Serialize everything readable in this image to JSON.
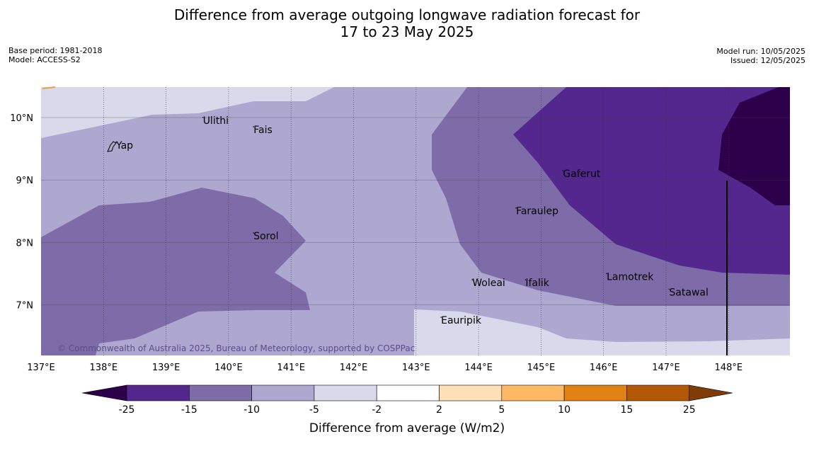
{
  "title_line1": "Difference from average outgoing longwave radiation forecast for",
  "title_line2": "17 to 23 May 2025",
  "base_period": "Base period: 1981-2018",
  "model": "Model: ACCESS-S2",
  "model_run": "Model run: 10/05/2025",
  "issued": "Issued: 12/05/2025",
  "copyright": "© Commonwealth of Australia 2025, Bureau of Meteorology, supported by COSPPac",
  "x_ticks": [
    "137°E",
    "138°E",
    "139°E",
    "140°E",
    "141°E",
    "142°E",
    "143°E",
    "144°E",
    "145°E",
    "146°E",
    "147°E",
    "148°E"
  ],
  "y_ticks": [
    "10°N",
    "9°N",
    "8°N",
    "7°N"
  ],
  "places": [
    {
      "name": "Ulithi",
      "lon": 139.59,
      "lat": 9.9
    },
    {
      "name": "Fais",
      "lon": 140.4,
      "lat": 9.75
    },
    {
      "name": "Yap",
      "lon": 138.2,
      "lat": 9.5
    },
    {
      "name": "Gaferut",
      "lon": 145.35,
      "lat": 9.05
    },
    {
      "name": "Faraulep",
      "lon": 144.6,
      "lat": 8.45
    },
    {
      "name": "Sorol",
      "lon": 140.4,
      "lat": 8.05
    },
    {
      "name": "Lamotrek",
      "lon": 146.05,
      "lat": 7.4
    },
    {
      "name": "Woleai",
      "lon": 143.9,
      "lat": 7.3
    },
    {
      "name": "Ifalik",
      "lon": 144.75,
      "lat": 7.3
    },
    {
      "name": "Satawal",
      "lon": 147.05,
      "lat": 7.15
    },
    {
      "name": "Eauripik",
      "lon": 143.4,
      "lat": 6.7
    }
  ],
  "colorbar": {
    "label": "Difference from average (W/m2)",
    "boundaries": [
      "-25",
      "-15",
      "-10",
      "-5",
      "-2",
      "2",
      "5",
      "10",
      "15",
      "25"
    ],
    "colors": [
      "#54278f",
      "#7e6ca9",
      "#aea7d0",
      "#d9d9eb",
      "#ffffff",
      "#fee0b6",
      "#fdb863",
      "#e08214",
      "#b35806"
    ],
    "extend_low_color": "#2d004b",
    "extend_high_color": "#7f3b08"
  },
  "field_colors": {
    "c1": "#d9d9eb",
    "c2": "#aea7d0",
    "c3": "#7e6ca9",
    "c4": "#54278f",
    "c5": "#2d004b"
  }
}
